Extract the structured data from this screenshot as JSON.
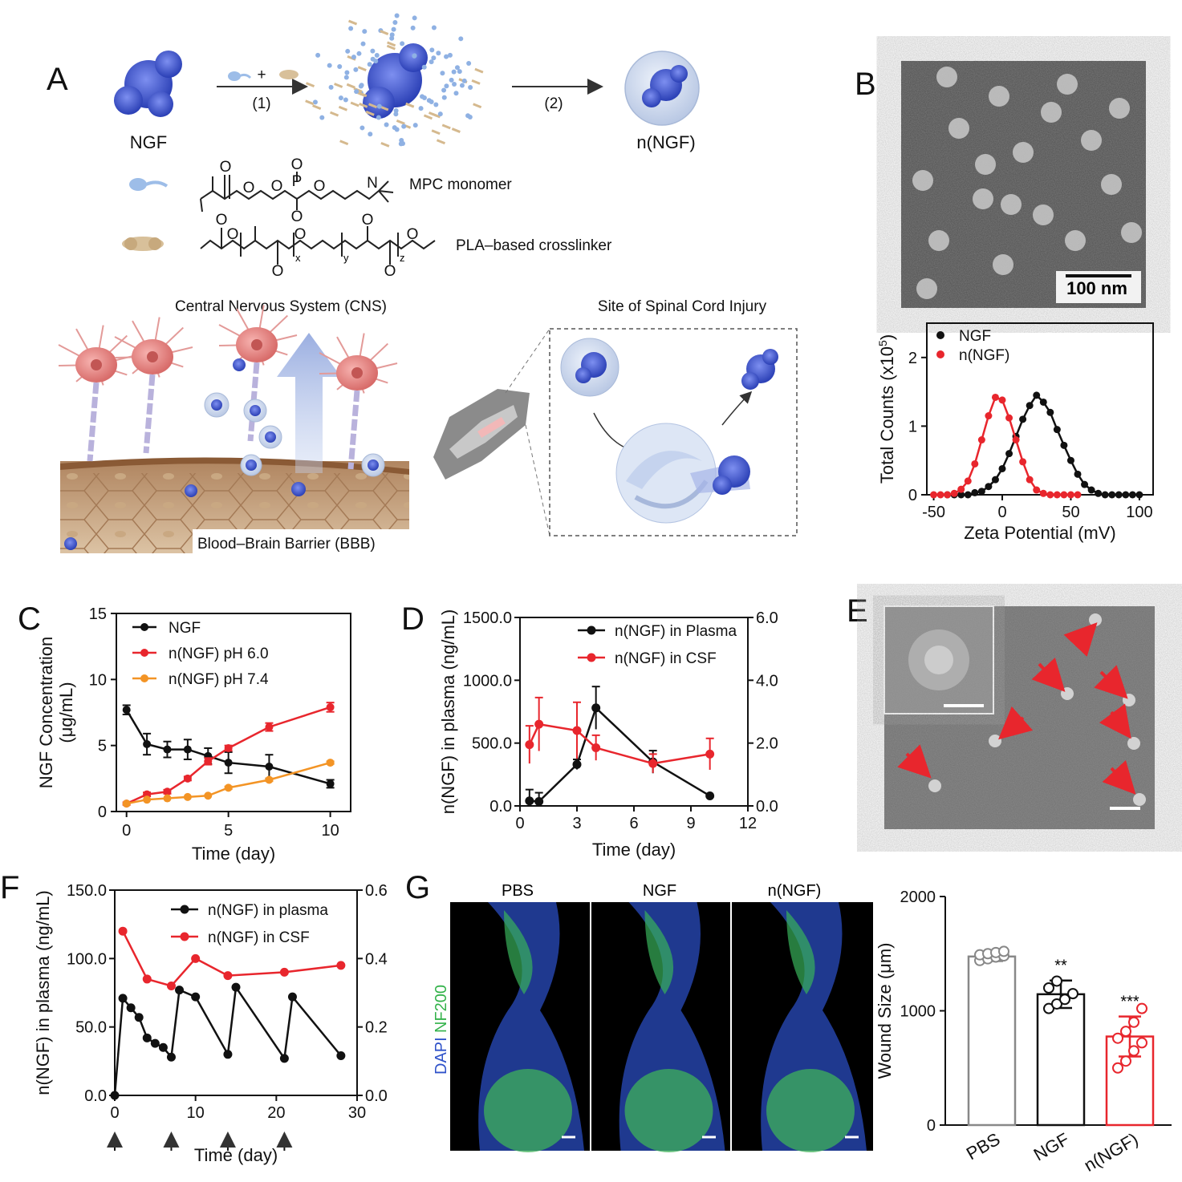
{
  "panels": {
    "A": {
      "letter": "A",
      "ngf_label": "NGF",
      "step1": "(1)",
      "step2": "(2)",
      "plus": "+",
      "nngf_label": "n(NGF)",
      "mpc_label": "MPC monomer",
      "crosslinker_label": "PLA–based crosslinker",
      "cns_title": "Central Nervous System (CNS)",
      "bbb_label": "Blood–Brain Barrier (BBB)",
      "sci_title": "Site of Spinal Cord Injury",
      "chem_letters": {
        "o": "O",
        "p": "P",
        "n": "N",
        "x": "x",
        "y": "y",
        "z": "z"
      }
    },
    "B": {
      "letter": "B",
      "scale_bar": "100 nm"
    },
    "E": {
      "letter": "E"
    },
    "G": {
      "letter": "G",
      "image_labels": [
        "PBS",
        "NGF",
        "n(NGF)"
      ],
      "stain_dapi": "DAPI",
      "stain_nf200": "NF200"
    }
  },
  "colors": {
    "black_series": "#111111",
    "red_series": "#e8262d",
    "orange_series": "#f39425"
  },
  "chart_data": [
    {
      "id": "B",
      "type": "scatter",
      "xlabel": "Zeta Potential (mV)",
      "ylabel": "Total Counts (x10",
      "ylabel_sup": "5",
      "ylabel_end": ")",
      "xlim": [
        -55,
        110
      ],
      "ylim": [
        0,
        2.5
      ],
      "xticks": [
        "-50",
        "0",
        "50",
        "100"
      ],
      "yticks": [
        "0",
        "1",
        "2"
      ],
      "legend": "top-left",
      "series": [
        {
          "name": "NGF",
          "color": "#111111",
          "x": [
            -40,
            -35,
            -30,
            -25,
            -20,
            -15,
            -10,
            -5,
            0,
            5,
            10,
            15,
            20,
            25,
            30,
            35,
            40,
            45,
            50,
            55,
            60,
            65,
            70,
            75,
            80,
            85,
            90,
            95,
            100
          ],
          "y": [
            0,
            0,
            0,
            0,
            0.03,
            0.05,
            0.12,
            0.22,
            0.38,
            0.6,
            0.85,
            1.1,
            1.3,
            1.45,
            1.35,
            1.2,
            0.95,
            0.72,
            0.5,
            0.3,
            0.15,
            0.07,
            0.02,
            0,
            0,
            0,
            0,
            0,
            0
          ]
        },
        {
          "name": "n(NGF)",
          "color": "#e8262d",
          "x": [
            -50,
            -45,
            -40,
            -35,
            -30,
            -25,
            -20,
            -15,
            -10,
            -5,
            0,
            5,
            10,
            15,
            20,
            25,
            30,
            35,
            40,
            45,
            50,
            55
          ],
          "y": [
            0,
            0,
            0,
            0.02,
            0.08,
            0.2,
            0.45,
            0.8,
            1.15,
            1.42,
            1.38,
            1.12,
            0.8,
            0.48,
            0.22,
            0.07,
            0.02,
            0,
            0,
            0,
            0,
            0
          ]
        }
      ]
    },
    {
      "id": "C",
      "type": "line",
      "xlabel": "Time (day)",
      "ylabel": "NGF Concentration",
      "ylabel2": "(μg/mL)",
      "xlim": [
        -0.5,
        11
      ],
      "ylim": [
        0,
        15
      ],
      "xticks": [
        "0",
        "5",
        "10"
      ],
      "yticks": [
        "0",
        "5",
        "10",
        "15"
      ],
      "legend": "top-left",
      "series": [
        {
          "name": "NGF",
          "color": "#111111",
          "x": [
            0,
            1,
            2,
            3,
            4,
            5,
            7,
            10
          ],
          "y": [
            7.7,
            5.1,
            4.7,
            4.7,
            4.2,
            3.7,
            3.4,
            2.1
          ],
          "err": [
            0.35,
            0.8,
            0.6,
            0.75,
            0.6,
            0.8,
            0.9,
            0.3
          ]
        },
        {
          "name": "n(NGF) pH 6.0",
          "color": "#e8262d",
          "x": [
            0,
            1,
            2,
            3,
            4,
            5,
            7,
            10
          ],
          "y": [
            0.6,
            1.3,
            1.5,
            2.5,
            3.8,
            4.8,
            6.4,
            7.9
          ],
          "err": [
            0.1,
            0.15,
            0.15,
            0.15,
            0.25,
            0.2,
            0.3,
            0.35
          ]
        },
        {
          "name": "n(NGF) pH 7.4",
          "color": "#f39425",
          "x": [
            0,
            1,
            2,
            3,
            4,
            5,
            7,
            10
          ],
          "y": [
            0.6,
            0.9,
            1.0,
            1.1,
            1.2,
            1.8,
            2.4,
            3.7
          ],
          "err": [
            0.05,
            0.05,
            0.05,
            0.05,
            0.05,
            0.1,
            0.1,
            0.1
          ]
        }
      ]
    },
    {
      "id": "D",
      "type": "line",
      "xlabel": "Time (day)",
      "ylabel": "n(NGF) in plasma (ng/mL)",
      "xlim": [
        0,
        12
      ],
      "ylim": [
        0,
        1500
      ],
      "y2lim": [
        0,
        6
      ],
      "xticks": [
        "0",
        "3",
        "6",
        "9",
        "12"
      ],
      "yticks": [
        "0.0",
        "500.0",
        "1000.0",
        "1500.0"
      ],
      "y2ticks": [
        "0.0",
        "2.0",
        "4.0",
        "6.0"
      ],
      "legend": "top-right",
      "series": [
        {
          "name": "n(NGF) in Plasma",
          "color": "#111111",
          "axis": "left",
          "x": [
            0.5,
            1,
            3,
            4,
            7,
            10
          ],
          "y": [
            40,
            35,
            330,
            780,
            350,
            80
          ],
          "err": [
            90,
            70,
            40,
            170,
            90,
            0
          ]
        },
        {
          "name": "n(NGF) in CSF",
          "color": "#e8262d",
          "axis": "right",
          "x": [
            0.5,
            1,
            3,
            4,
            7,
            10
          ],
          "y": [
            1.95,
            2.6,
            2.4,
            1.85,
            1.35,
            1.65
          ],
          "err": [
            0.6,
            0.85,
            0.9,
            0.4,
            0.3,
            0.5
          ]
        }
      ]
    },
    {
      "id": "F",
      "type": "line",
      "xlabel": "Time (day)",
      "ylabel": "n(NGF) in plasma (ng/mL)",
      "xlim": [
        0,
        30
      ],
      "ylim": [
        0,
        150
      ],
      "y2lim": [
        0,
        0.6
      ],
      "xticks": [
        "0",
        "10",
        "20",
        "30"
      ],
      "yticks": [
        "0.0",
        "50.0",
        "100.0",
        "150.0"
      ],
      "y2ticks": [
        "0.0",
        "0.2",
        "0.4",
        "0.6"
      ],
      "legend": "top-right",
      "dose_days": [
        0,
        7,
        14,
        21
      ],
      "series": [
        {
          "name": "n(NGF) in plasma",
          "color": "#111111",
          "axis": "left",
          "x": [
            0,
            1,
            2,
            3,
            4,
            5,
            6,
            7,
            8,
            10,
            14,
            15,
            21,
            22,
            28
          ],
          "y": [
            0,
            71,
            64,
            57,
            42,
            38,
            35,
            28,
            77,
            72,
            30,
            79,
            27,
            72,
            29
          ]
        },
        {
          "name": "n(NGF) in CSF",
          "color": "#e8262d",
          "axis": "right",
          "x": [
            1,
            4,
            7,
            10,
            14,
            21,
            28
          ],
          "y": [
            0.48,
            0.34,
            0.32,
            0.4,
            0.35,
            0.36,
            0.38
          ]
        }
      ]
    },
    {
      "id": "G",
      "type": "bar",
      "ylabel": "Wound Size (μm)",
      "ylim": [
        0,
        2000
      ],
      "yticks": [
        "0",
        "1000",
        "2000"
      ],
      "categories": [
        "PBS",
        "NGF",
        "n(NGF)"
      ],
      "values": [
        1475,
        1145,
        775
      ],
      "err": [
        40,
        120,
        175
      ],
      "significance": [
        "",
        "**",
        "***"
      ],
      "bar_colors": [
        "#888888",
        "#111111",
        "#e8262d"
      ],
      "points": [
        [
          1440,
          1455,
          1470,
          1480,
          1490,
          1500,
          1510,
          1520
        ],
        [
          1020,
          1060,
          1100,
          1150,
          1200,
          1260
        ],
        [
          500,
          560,
          650,
          720,
          760,
          820,
          900,
          1020
        ]
      ]
    }
  ]
}
